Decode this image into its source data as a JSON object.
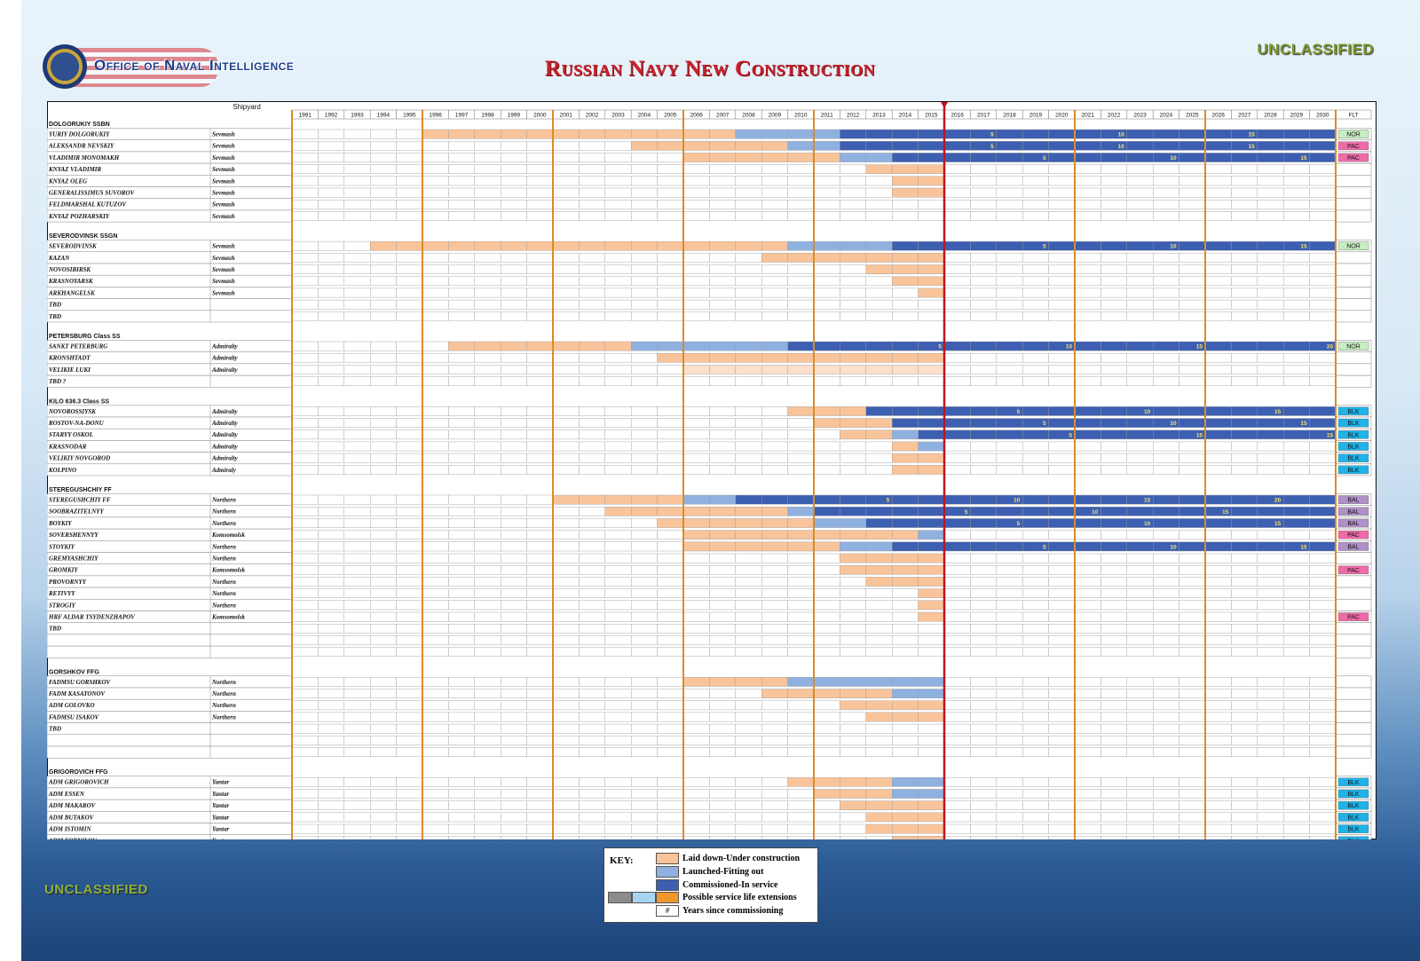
{
  "header": {
    "org": "Office of Naval Intelligence",
    "title": "Russian Navy New Construction",
    "classification_top": "UNCLASSIFIED",
    "classification_bottom": "UNCLASSIFIED"
  },
  "colors": {
    "laid": "#f9c49a",
    "launched": "#8fb1e0",
    "commissioned": "#3d5fb2",
    "extension": "#f0962a",
    "now_line": "#c0141e",
    "divider": "#d98c2a",
    "flt": {
      "NOR": "#c7efc2",
      "PAC": "#f06aa8",
      "BLK": "#1fb3e8",
      "BAL": "#b090c8"
    }
  },
  "key": {
    "title": "KEY:",
    "items": [
      {
        "status": "laid",
        "label": "Laid down-Under construction"
      },
      {
        "status": "launched",
        "label": "Launched-Fitting out"
      },
      {
        "status": "commissioned",
        "label": "Commissioned-In service"
      },
      {
        "status": "extension",
        "label": "Possible service life extensions"
      },
      {
        "status": "years",
        "label": "Years since commissioning",
        "symbol": "#"
      }
    ]
  },
  "chart_data": {
    "type": "gantt",
    "title": "Russian Navy New Construction",
    "col_shipyard": "Shipyard",
    "col_fleet": "FLT",
    "years": [
      1991,
      1992,
      1993,
      1994,
      1995,
      1996,
      1997,
      1998,
      1999,
      2000,
      2001,
      2002,
      2003,
      2004,
      2005,
      2006,
      2007,
      2008,
      2009,
      2010,
      2011,
      2012,
      2013,
      2014,
      2015,
      2016,
      2017,
      2018,
      2019,
      2020,
      2021,
      2022,
      2023,
      2024,
      2025,
      2026,
      2027,
      2028,
      2029,
      2030
    ],
    "current_year": 2015,
    "year_markers": [
      5,
      10,
      15,
      20
    ],
    "groups": [
      {
        "name": "DOLGORUKIY SSBN",
        "ships": [
          {
            "name": "YURIY DOLGORUKIY",
            "yard": "Sevmash",
            "laid": 1996,
            "launched": 2008,
            "commissioned": 2012,
            "flt": "NOR"
          },
          {
            "name": "ALEKSANDR NEVSKIY",
            "yard": "Sevmash",
            "laid": 2004,
            "launched": 2010,
            "commissioned": 2012,
            "flt": "PAC"
          },
          {
            "name": "VLADIMIR MONOMAKH",
            "yard": "Sevmash",
            "laid": 2006,
            "launched": 2012,
            "commissioned": 2014,
            "flt": "PAC"
          },
          {
            "name": "KNYAZ VLADIMIR",
            "yard": "Sevmash",
            "laid": 2013
          },
          {
            "name": "KNYAZ OLEG",
            "yard": "Sevmash",
            "laid": 2014
          },
          {
            "name": "GENERALISSIMUS SUVOROV",
            "yard": "Sevmash",
            "laid": 2014
          },
          {
            "name": "FELDMARSHAL KUTUZOV",
            "yard": "Sevmash"
          },
          {
            "name": "KNYAZ POZHARSKIY",
            "yard": "Sevmash"
          }
        ]
      },
      {
        "name": "SEVERODVINSK SSGN",
        "ships": [
          {
            "name": "SEVERODVINSK",
            "yard": "Sevmash",
            "laid": 1994,
            "launched": 2010,
            "commissioned": 2014,
            "flt": "NOR"
          },
          {
            "name": "KAZAN",
            "yard": "Sevmash",
            "laid": 2009
          },
          {
            "name": "NOVOSIBIRSK",
            "yard": "Sevmash",
            "laid": 2013
          },
          {
            "name": "KRASNOYARSK",
            "yard": "Sevmash",
            "laid": 2014
          },
          {
            "name": "ARKHANGELSK",
            "yard": "Sevmash",
            "laid": 2015
          },
          {
            "name": "TBD",
            "yard": ""
          },
          {
            "name": "TBD",
            "yard": ""
          }
        ]
      },
      {
        "name": "PETERSBURG Class SS",
        "ships": [
          {
            "name": "SANKT PETERBURG",
            "yard": "Admiralty",
            "laid": 1997,
            "launched": 2004,
            "commissioned": 2010,
            "flt": "NOR"
          },
          {
            "name": "KRONSHTADT",
            "yard": "Admiralty",
            "laid": 2005
          },
          {
            "name": "VELIKIE LUKI",
            "yard": "Admiralty",
            "laid": 2006,
            "light": true
          },
          {
            "name": "TBD ?",
            "yard": ""
          }
        ]
      },
      {
        "name": "KILO 636.3 Class SS",
        "ships": [
          {
            "name": "NOVOROSSIYSK",
            "yard": "Admiralty",
            "laid": 2010,
            "launched": 2013,
            "commissioned": 2013,
            "flt": "BLK"
          },
          {
            "name": "ROSTOV-NA-DONU",
            "yard": "Admiralty",
            "laid": 2011,
            "launched": 2014,
            "commissioned": 2014,
            "flt": "BLK"
          },
          {
            "name": "STARYY OSKOL",
            "yard": "Admiralty",
            "laid": 2012,
            "launched": 2014,
            "commissioned": 2015,
            "flt": "BLK"
          },
          {
            "name": "KRASNODAR",
            "yard": "Admiralty",
            "laid": 2014,
            "launched": 2015,
            "flt": "BLK"
          },
          {
            "name": "VELIKIY NOVGOROD",
            "yard": "Admiralty",
            "laid": 2014,
            "flt": "BLK"
          },
          {
            "name": "KOLPINO",
            "yard": "Admiraly",
            "laid": 2014,
            "flt": "BLK"
          }
        ]
      },
      {
        "name": "STEREGUSHCHIY FF",
        "ships": [
          {
            "name": "STEREGUSHCHIY FF",
            "yard": "Northern",
            "laid": 2001,
            "launched": 2006,
            "commissioned": 2008,
            "flt": "BAL"
          },
          {
            "name": "SOOBRAZITELNYY",
            "yard": "Northern",
            "laid": 2003,
            "launched": 2010,
            "commissioned": 2011,
            "flt": "BAL"
          },
          {
            "name": "BOYKIY",
            "yard": "Northern",
            "laid": 2005,
            "launched": 2011,
            "commissioned": 2013,
            "flt": "BAL"
          },
          {
            "name": "SOVERSHENNYY",
            "yard": "Komsomolsk",
            "laid": 2006,
            "launched": 2015,
            "flt": "PAC"
          },
          {
            "name": "STOYKIY",
            "yard": "Northern",
            "laid": 2006,
            "launched": 2012,
            "commissioned": 2014,
            "flt": "BAL"
          },
          {
            "name": "GREMYASHCHIY",
            "yard": "Northern",
            "laid": 2012
          },
          {
            "name": "GROMKIY",
            "yard": "Komsomolsk",
            "laid": 2012,
            "flt": "PAC"
          },
          {
            "name": "PROVORNYY",
            "yard": "Northern",
            "laid": 2013
          },
          {
            "name": "RETIVYY",
            "yard": "Northern",
            "laid": 2015
          },
          {
            "name": "STROGIY",
            "yard": "Northern",
            "laid": 2015
          },
          {
            "name": "HRF ALDAR TSYDENZHAPOV",
            "yard": "Komsomolsk",
            "laid": 2015,
            "flt": "PAC"
          },
          {
            "name": "TBD",
            "yard": ""
          },
          {
            "name": "",
            "yard": ""
          },
          {
            "name": "",
            "yard": ""
          }
        ]
      },
      {
        "name": "GORSHKOV FFG",
        "ships": [
          {
            "name": "FADMSU GORSHKOV",
            "yard": "Northern",
            "laid": 2006,
            "launched": 2010
          },
          {
            "name": "FADM KASATONOV",
            "yard": "Northern",
            "laid": 2009,
            "launched": 2014
          },
          {
            "name": "ADM GOLOVKO",
            "yard": "Northern",
            "laid": 2012
          },
          {
            "name": "FADMSU ISAKOV",
            "yard": "Northern",
            "laid": 2013
          },
          {
            "name": "TBD",
            "yard": ""
          },
          {
            "name": "",
            "yard": ""
          },
          {
            "name": "",
            "yard": ""
          }
        ]
      },
      {
        "name": "GRIGOROVICH FFG",
        "ships": [
          {
            "name": "ADM GRIGOROVICH",
            "yard": "Yantar",
            "laid": 2010,
            "launched": 2014,
            "flt": "BLK"
          },
          {
            "name": "ADM ESSEN",
            "yard": "Yantar",
            "laid": 2011,
            "launched": 2014,
            "flt": "BLK"
          },
          {
            "name": "ADM MAKAROV",
            "yard": "Yantar",
            "laid": 2012,
            "flt": "BLK"
          },
          {
            "name": "ADM BUTAKOV",
            "yard": "Yantar",
            "laid": 2013,
            "flt": "BLK"
          },
          {
            "name": "ADM ISTOMIN",
            "yard": "Yantar",
            "laid": 2013,
            "flt": "BLK"
          },
          {
            "name": "ADM KORNILOV",
            "yard": "Yantar",
            "laid": 2014,
            "flt": "BLK"
          }
        ]
      }
    ]
  }
}
